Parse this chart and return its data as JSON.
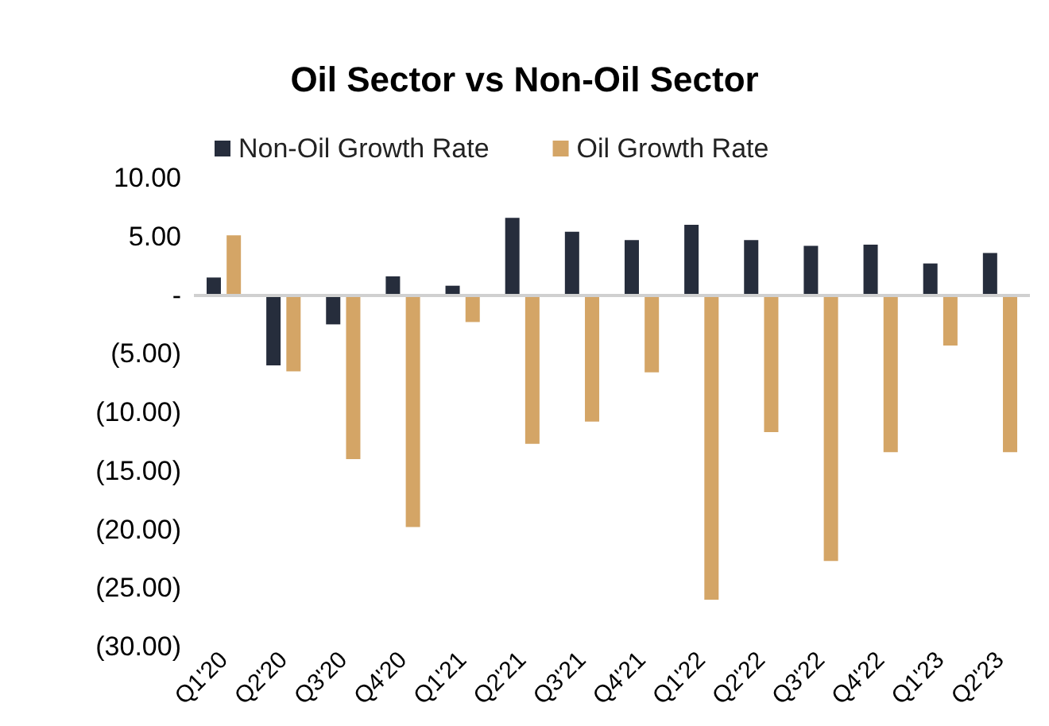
{
  "chart_data": {
    "type": "bar",
    "title": "Oil Sector vs Non-Oil Sector",
    "categories": [
      "Q1'20",
      "Q2'20",
      "Q3'20",
      "Q4'20",
      "Q1'21",
      "Q2'21",
      "Q3'21",
      "Q4'21",
      "Q1'22",
      "Q2'22",
      "Q3'22",
      "Q4'22",
      "Q1'23",
      "Q2'23"
    ],
    "series": [
      {
        "name": "Non-Oil Growth Rate",
        "color": "#262d3c",
        "values": [
          1.5,
          -6.0,
          -2.5,
          1.6,
          0.8,
          6.6,
          5.4,
          4.7,
          6.0,
          4.7,
          4.2,
          4.3,
          2.7,
          3.6
        ]
      },
      {
        "name": "Oil Growth Rate",
        "color": "#d4a566",
        "values": [
          5.1,
          -6.5,
          -14.0,
          -19.8,
          -2.3,
          -12.7,
          -10.8,
          -6.6,
          -26.0,
          -11.7,
          -22.7,
          -13.4,
          -4.3,
          -13.4
        ]
      }
    ],
    "ylim": [
      -30,
      10
    ],
    "yticks": [
      {
        "value": 10,
        "label": "10.00"
      },
      {
        "value": 5,
        "label": "5.00"
      },
      {
        "value": 0,
        "label": "-"
      },
      {
        "value": -5,
        "label": "(5.00)"
      },
      {
        "value": -10,
        "label": "(10.00)"
      },
      {
        "value": -15,
        "label": "(15.00)"
      },
      {
        "value": -20,
        "label": "(20.00)"
      },
      {
        "value": -25,
        "label": "(25.00)"
      },
      {
        "value": -30,
        "label": "(30.00)"
      }
    ],
    "ref_lines": [
      {
        "axis": "y",
        "value": 0,
        "color": "#d0d0d0"
      }
    ],
    "grid": false,
    "legend": "top"
  }
}
